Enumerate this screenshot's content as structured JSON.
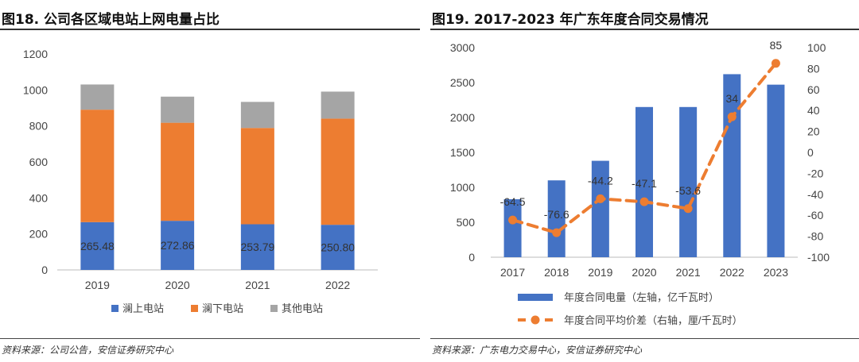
{
  "left": {
    "title": "图18. 公司各区域电站上网电量占比",
    "source": "资料来源：公司公告，安信证券研究中心",
    "chart_data": {
      "type": "bar",
      "stacked": true,
      "categories": [
        "2019",
        "2020",
        "2021",
        "2022"
      ],
      "y_ticks": [
        "0",
        "200",
        "400",
        "600",
        "800",
        "1000",
        "1200"
      ],
      "ylim": [
        0,
        1200
      ],
      "series": [
        {
          "name": "澜上电站",
          "color": "#4472C4",
          "values": [
            265.48,
            272.86,
            253.79,
            250.8
          ],
          "labels": [
            "265.48",
            "272.86",
            "253.79",
            "250.80"
          ]
        },
        {
          "name": "澜下电站",
          "color": "#ED7D31",
          "values": [
            625,
            545,
            535,
            590
          ]
        },
        {
          "name": "其他电站",
          "color": "#A5A5A5",
          "values": [
            140,
            145,
            145,
            150
          ]
        }
      ],
      "legend_position": "bottom",
      "grid": false
    }
  },
  "right": {
    "title": "图19. 2017-2023 年广东年度合同交易情况",
    "source": "资料来源：广东电力交易中心，安信证券研究中心",
    "chart_data": {
      "type": "bar+line",
      "categories": [
        "2017",
        "2018",
        "2019",
        "2020",
        "2021",
        "2022",
        "2023"
      ],
      "left_ticks": [
        "0",
        "500",
        "1000",
        "1500",
        "2000",
        "2500",
        "3000"
      ],
      "left_ylim": [
        0,
        3000
      ],
      "right_ticks": [
        "-100",
        "-80",
        "-60",
        "-40",
        "-20",
        "0",
        "20",
        "40",
        "60",
        "80",
        "100"
      ],
      "right_ylim": [
        -100,
        100
      ],
      "bar_series": {
        "name": "年度合同电量（左轴，亿千瓦时）",
        "color": "#4472C4",
        "values": [
          830,
          1100,
          1380,
          2150,
          2150,
          2620,
          2470
        ]
      },
      "line_series": {
        "name": "年度合同平均价差（右轴，厘/千瓦时）",
        "color": "#ED7D31",
        "values": [
          -64.5,
          -76.6,
          -44.2,
          -47.1,
          -53.6,
          34,
          85
        ],
        "labels": [
          "-64.5",
          "-76.6",
          "-44.2",
          "-47.1",
          "-53.6",
          "34",
          "85"
        ]
      },
      "legend_position": "bottom",
      "grid": false
    }
  }
}
